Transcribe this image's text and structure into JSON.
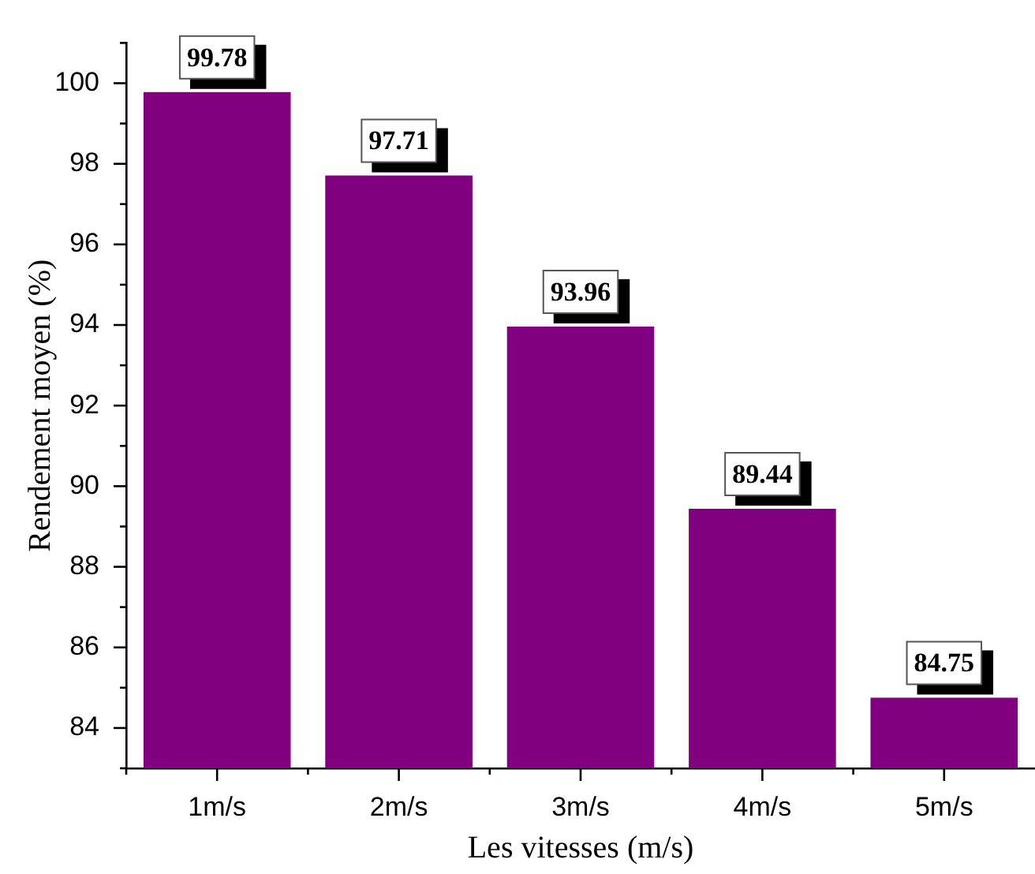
{
  "chart_data": {
    "type": "bar",
    "xlabel": "Les vitesses (m/s)",
    "ylabel": "Rendement moyen (%)",
    "categories": [
      "1m/s",
      "2m/s",
      "3m/s",
      "4m/s",
      "5m/s"
    ],
    "values": [
      99.78,
      97.71,
      93.96,
      89.44,
      84.75
    ],
    "color": "#800080",
    "ylim": [
      83,
      101
    ],
    "yticks": [
      {
        "value": 83,
        "label": null
      },
      84,
      {
        "value": 85,
        "label": null
      },
      86,
      {
        "value": 87,
        "label": null
      },
      88,
      {
        "value": 89,
        "label": null
      },
      90,
      {
        "value": 91,
        "label": null
      },
      92,
      {
        "value": 93,
        "label": null
      },
      94,
      {
        "value": 95,
        "label": null
      },
      96,
      {
        "value": 97,
        "label": null
      },
      98,
      {
        "value": 99,
        "label": null
      },
      100,
      {
        "value": 101,
        "label": null
      }
    ],
    "data_labels": true
  }
}
